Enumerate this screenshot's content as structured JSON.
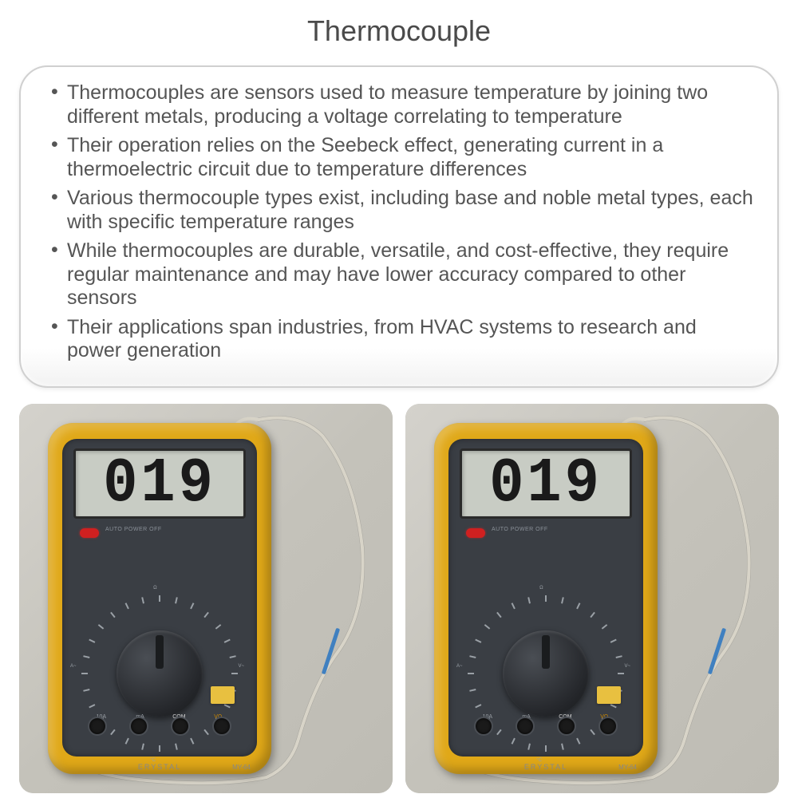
{
  "title": "Thermocouple",
  "bullets": [
    "Thermocouples are sensors used to measure temperature by joining two different metals, producing a voltage correlating to temperature",
    "Their operation relies on the Seebeck effect, generating current in a thermoelectric circuit due to temperature differences",
    "Various thermocouple types exist, including base and noble metal types, each with specific temperature ranges",
    "While thermocouples are durable, versatile, and cost-effective, they require regular maintenance and may have lower accuracy compared to other sensors",
    "Their applications span industries, from HVAC systems to research and power generation"
  ],
  "meter": {
    "display": "019",
    "power_text": "AUTO POWER OFF",
    "brand": "ERYSTAL",
    "model": "MY-64",
    "port_labels": [
      "10A",
      "mA",
      "COM",
      "VΩ"
    ],
    "body_color": "#e0a818",
    "panel_color": "#3a3e44",
    "lcd_bg": "#c8ccc4",
    "led_color": "#d02020",
    "connector_color": "#e8c040",
    "probe_color": "#4080c0",
    "wire_color": "#d8d4c8"
  },
  "layout": {
    "image_bg": "#c8c6c0",
    "card_border": "#d0d0d0",
    "text_color": "#555555",
    "title_color": "#4a4a4a",
    "title_fontsize": 36,
    "bullet_fontsize": 25
  }
}
